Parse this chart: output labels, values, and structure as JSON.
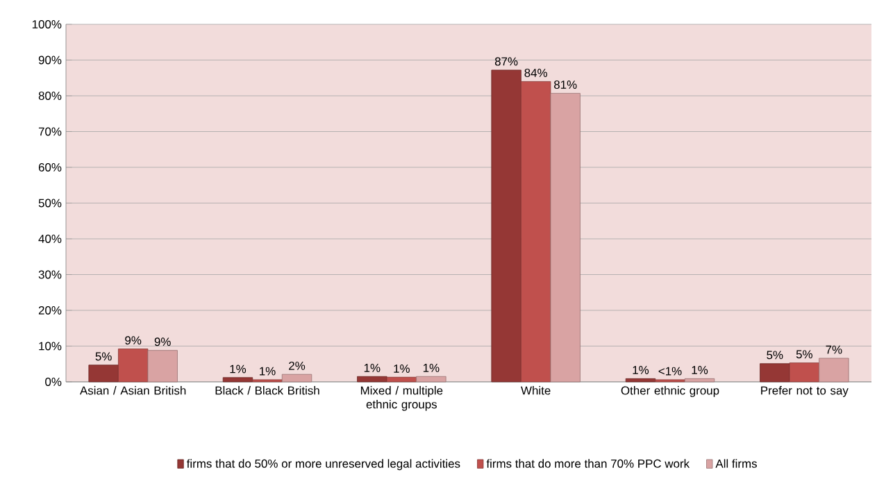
{
  "chart_data": {
    "type": "bar",
    "categories": [
      "Asian / Asian British",
      "Black / Black British",
      "Mixed / multiple ethnic groups",
      "White",
      "Other ethnic group",
      "Prefer not to say"
    ],
    "series": [
      {
        "name": "firms that do 50% or more unreserved legal activities",
        "color": "#953735",
        "values": [
          4.7,
          1.2,
          1.5,
          87.2,
          0.9,
          5.1
        ],
        "value_labels": [
          "5%",
          "1%",
          "1%",
          "87%",
          "1%",
          "5%"
        ]
      },
      {
        "name": "firms that do more than 70% PPC work",
        "color": "#c0504d",
        "values": [
          9.2,
          0.6,
          1.3,
          84,
          0.6,
          5.3
        ],
        "value_labels": [
          "9%",
          "1%",
          "1%",
          "84%",
          "<1%",
          "5%"
        ]
      },
      {
        "name": "All firms",
        "color": "#d9a3a3",
        "values": [
          8.8,
          2.1,
          1.5,
          80.7,
          0.9,
          6.6
        ],
        "value_labels": [
          "9%",
          "2%",
          "1%",
          "81%",
          "1%",
          "7%"
        ]
      }
    ],
    "ylim": [
      0,
      100
    ],
    "yticks": [
      {
        "value": 0,
        "label": "0%"
      },
      {
        "value": 10,
        "label": "10%"
      },
      {
        "value": 20,
        "label": "20%"
      },
      {
        "value": 30,
        "label": "30%"
      },
      {
        "value": 40,
        "label": "40%"
      },
      {
        "value": 50,
        "label": "50%"
      },
      {
        "value": 60,
        "label": "60%"
      },
      {
        "value": 70,
        "label": "70%"
      },
      {
        "value": 80,
        "label": "80%"
      },
      {
        "value": 90,
        "label": "90%"
      },
      {
        "value": 100,
        "label": "100%"
      }
    ],
    "grid": "y",
    "legend": "bottom"
  }
}
